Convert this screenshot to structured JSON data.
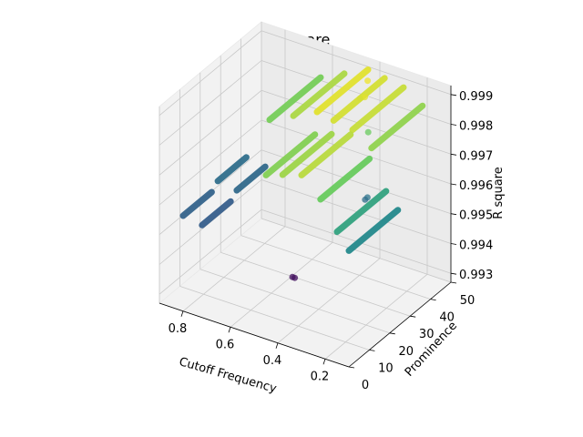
{
  "chart_data": {
    "type": "scatter",
    "projection": "3d",
    "title": "R square",
    "xlabel": "Cutoff Frequency",
    "ylabel": "Prominence",
    "zlabel": "R square",
    "xlim": [
      0.1,
      0.9
    ],
    "ylim": [
      0,
      50
    ],
    "zlim": [
      0.9927,
      0.9993
    ],
    "x_ticks": [
      0.2,
      0.4,
      0.6,
      0.8
    ],
    "x_tick_labels": [
      "0.2",
      "0.4",
      "0.6",
      "0.8"
    ],
    "y_ticks": [
      0,
      10,
      20,
      30,
      40,
      50
    ],
    "y_tick_labels": [
      "0",
      "10",
      "20",
      "30",
      "40",
      "50"
    ],
    "z_ticks": [
      0.993,
      0.994,
      0.995,
      0.996,
      0.997,
      0.998,
      0.999
    ],
    "z_tick_labels": [
      "0.993",
      "0.994",
      "0.995",
      "0.996",
      "0.997",
      "0.998",
      "0.999"
    ],
    "grid": true,
    "colormap": "viridis",
    "color_range": [
      0.9944,
      0.9991
    ],
    "segments": [
      {
        "x": 0.1,
        "y_range": [
          0,
          24
        ],
        "z": 0.9966
      },
      {
        "x": 0.15,
        "y_range": [
          0,
          24
        ],
        "z": 0.9971
      },
      {
        "x": 0.22,
        "y_range": [
          0,
          24
        ],
        "z": 0.998
      },
      {
        "x": 0.3,
        "y_range": [
          0,
          24
        ],
        "z": 0.9986
      },
      {
        "x": 0.38,
        "y_range": [
          0,
          24
        ],
        "z": 0.9984
      },
      {
        "x": 0.45,
        "y_range": [
          0,
          24
        ],
        "z": 0.9982
      },
      {
        "x": 0.22,
        "y_range": [
          25,
          50
        ],
        "z": 0.9983
      },
      {
        "x": 0.3,
        "y_range": [
          25,
          50
        ],
        "z": 0.9987
      },
      {
        "x": 0.38,
        "y_range": [
          25,
          50
        ],
        "z": 0.9988
      },
      {
        "x": 0.45,
        "y_range": [
          25,
          50
        ],
        "z": 0.9989
      },
      {
        "x": 0.55,
        "y_range": [
          25,
          50
        ],
        "z": 0.9985
      },
      {
        "x": 0.65,
        "y_range": [
          25,
          50
        ],
        "z": 0.9981
      },
      {
        "x": 0.72,
        "y_range": [
          0,
          14
        ],
        "z": 0.9958
      },
      {
        "x": 0.8,
        "y_range": [
          0,
          14
        ],
        "z": 0.9959
      },
      {
        "x": 0.72,
        "y_range": [
          17,
          31
        ],
        "z": 0.996
      },
      {
        "x": 0.8,
        "y_range": [
          17,
          31
        ],
        "z": 0.9961
      }
    ],
    "scatter_points": [
      {
        "x": 0.36,
        "y": 38,
        "z": 0.9989
      },
      {
        "x": 0.38,
        "y": 38,
        "z": 0.9988
      },
      {
        "x": 0.4,
        "y": 44,
        "z": 0.999
      },
      {
        "x": 0.32,
        "y": 35,
        "z": 0.998
      },
      {
        "x": 0.28,
        "y": 30,
        "z": 0.9962
      },
      {
        "x": 0.29,
        "y": 30,
        "z": 0.9961
      },
      {
        "x": 0.38,
        "y": 6,
        "z": 0.9946
      },
      {
        "x": 0.39,
        "y": 6,
        "z": 0.9946
      }
    ]
  }
}
